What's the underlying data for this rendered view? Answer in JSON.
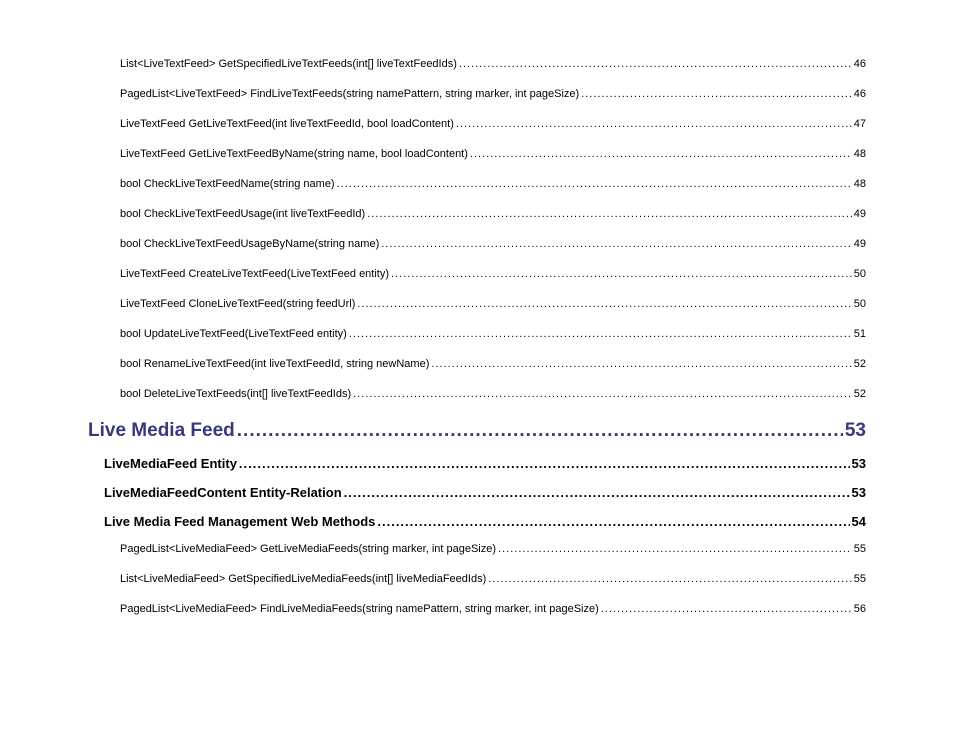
{
  "toc": [
    {
      "level": 3,
      "label": "List<LiveTextFeed> GetSpecifiedLiveTextFeeds(int[] liveTextFeedIds)",
      "page": "46"
    },
    {
      "level": 3,
      "label": "PagedList<LiveTextFeed> FindLiveTextFeeds(string namePattern, string marker, int pageSize)",
      "page": "46"
    },
    {
      "level": 3,
      "label": "LiveTextFeed GetLiveTextFeed(int liveTextFeedId, bool loadContent)",
      "page": "47"
    },
    {
      "level": 3,
      "label": "LiveTextFeed GetLiveTextFeedByName(string name, bool loadContent)",
      "page": "48"
    },
    {
      "level": 3,
      "label": "bool CheckLiveTextFeedName(string name)",
      "page": "48"
    },
    {
      "level": 3,
      "label": "bool CheckLiveTextFeedUsage(int liveTextFeedId)",
      "page": "49"
    },
    {
      "level": 3,
      "label": "bool CheckLiveTextFeedUsageByName(string name)",
      "page": "49"
    },
    {
      "level": 3,
      "label": "LiveTextFeed CreateLiveTextFeed(LiveTextFeed entity)",
      "page": "50"
    },
    {
      "level": 3,
      "label": "LiveTextFeed CloneLiveTextFeed(string feedUrl)",
      "page": "50"
    },
    {
      "level": 3,
      "label": "bool UpdateLiveTextFeed(LiveTextFeed entity)",
      "page": "51"
    },
    {
      "level": 3,
      "label": "bool RenameLiveTextFeed(int liveTextFeedId, string newName)",
      "page": "52"
    },
    {
      "level": 3,
      "label": "bool DeleteLiveTextFeeds(int[] liveTextFeedIds)",
      "page": "52"
    },
    {
      "level": 1,
      "label": "Live Media Feed",
      "page": "53"
    },
    {
      "level": 2,
      "label": "LiveMediaFeed Entity",
      "page": "53"
    },
    {
      "level": 2,
      "label": "LiveMediaFeedContent Entity-Relation",
      "page": "53"
    },
    {
      "level": 2,
      "label": "Live Media Feed Management Web Methods",
      "page": "54"
    },
    {
      "level": 3,
      "label": "PagedList<LiveMediaFeed> GetLiveMediaFeeds(string marker, int pageSize)",
      "page": "55"
    },
    {
      "level": 3,
      "label": "List<LiveMediaFeed> GetSpecifiedLiveMediaFeeds(int[] liveMediaFeedIds)",
      "page": "55"
    },
    {
      "level": 3,
      "label": "PagedList<LiveMediaFeed> FindLiveMediaFeeds(string namePattern, string marker, int pageSize)",
      "page": "56"
    }
  ],
  "styles": {
    "lvl1_color": "#39387a",
    "lvl1_fontsize": 19,
    "lvl2_fontsize": 13,
    "lvl3_fontsize": 11,
    "text_color": "#000000",
    "background": "#ffffff"
  }
}
